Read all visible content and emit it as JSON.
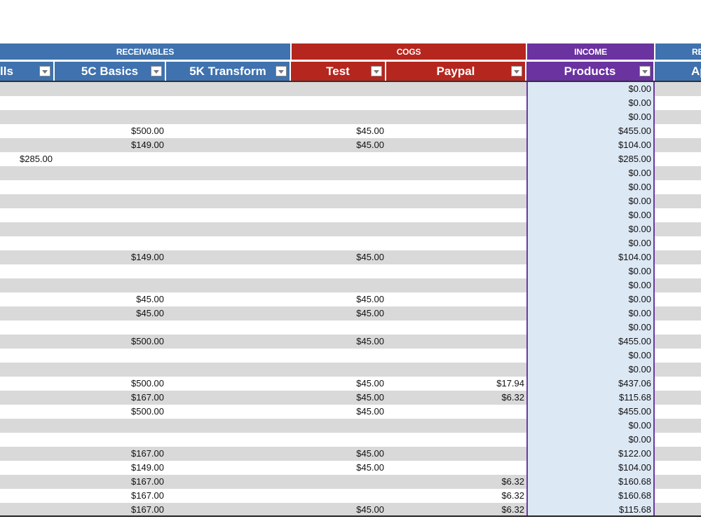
{
  "colors": {
    "receivables": "#3f72ae",
    "cogs": "#b5261e",
    "income": "#6a33a0",
    "stripe": "#d9d9d9",
    "products_bg": "#dde8f5"
  },
  "bands": {
    "receivables": "RECEIVABLES",
    "cogs": "COGS",
    "income": "INCOME",
    "next": "RE"
  },
  "headers": {
    "col_a": "lls",
    "basics": "5C Basics",
    "transform": "5K Transform",
    "test": "Test",
    "paypal": "Paypal",
    "products": "Products",
    "next": "Ap"
  },
  "rows": [
    [
      "",
      "",
      "",
      "",
      "",
      "$0.00"
    ],
    [
      "",
      "",
      "",
      "",
      "",
      "$0.00"
    ],
    [
      "",
      "",
      "",
      "",
      "",
      "$0.00"
    ],
    [
      "",
      "$500.00",
      "",
      "$45.00",
      "",
      "$455.00"
    ],
    [
      "",
      "$149.00",
      "",
      "$45.00",
      "",
      "$104.00"
    ],
    [
      "$285.00",
      "",
      "",
      "",
      "",
      "$285.00"
    ],
    [
      "",
      "",
      "",
      "",
      "",
      "$0.00"
    ],
    [
      "",
      "",
      "",
      "",
      "",
      "$0.00"
    ],
    [
      "",
      "",
      "",
      "",
      "",
      "$0.00"
    ],
    [
      "",
      "",
      "",
      "",
      "",
      "$0.00"
    ],
    [
      "",
      "",
      "",
      "",
      "",
      "$0.00"
    ],
    [
      "",
      "",
      "",
      "",
      "",
      "$0.00"
    ],
    [
      "",
      "$149.00",
      "",
      "$45.00",
      "",
      "$104.00"
    ],
    [
      "",
      "",
      "",
      "",
      "",
      "$0.00"
    ],
    [
      "",
      "",
      "",
      "",
      "",
      "$0.00"
    ],
    [
      "",
      "$45.00",
      "",
      "$45.00",
      "",
      "$0.00"
    ],
    [
      "",
      "$45.00",
      "",
      "$45.00",
      "",
      "$0.00"
    ],
    [
      "",
      "",
      "",
      "",
      "",
      "$0.00"
    ],
    [
      "",
      "$500.00",
      "",
      "$45.00",
      "",
      "$455.00"
    ],
    [
      "",
      "",
      "",
      "",
      "",
      "$0.00"
    ],
    [
      "",
      "",
      "",
      "",
      "",
      "$0.00"
    ],
    [
      "",
      "$500.00",
      "",
      "$45.00",
      "$17.94",
      "$437.06"
    ],
    [
      "",
      "$167.00",
      "",
      "$45.00",
      "$6.32",
      "$115.68"
    ],
    [
      "",
      "$500.00",
      "",
      "$45.00",
      "",
      "$455.00"
    ],
    [
      "",
      "",
      "",
      "",
      "",
      "$0.00"
    ],
    [
      "",
      "",
      "",
      "",
      "",
      "$0.00"
    ],
    [
      "",
      "$167.00",
      "",
      "$45.00",
      "",
      "$122.00"
    ],
    [
      "",
      "$149.00",
      "",
      "$45.00",
      "",
      "$104.00"
    ],
    [
      "",
      "$167.00",
      "",
      "",
      "$6.32",
      "$160.68"
    ],
    [
      "",
      "$167.00",
      "",
      "",
      "$6.32",
      "$160.68"
    ],
    [
      "",
      "$167.00",
      "",
      "$45.00",
      "$6.32",
      "$115.68"
    ]
  ]
}
